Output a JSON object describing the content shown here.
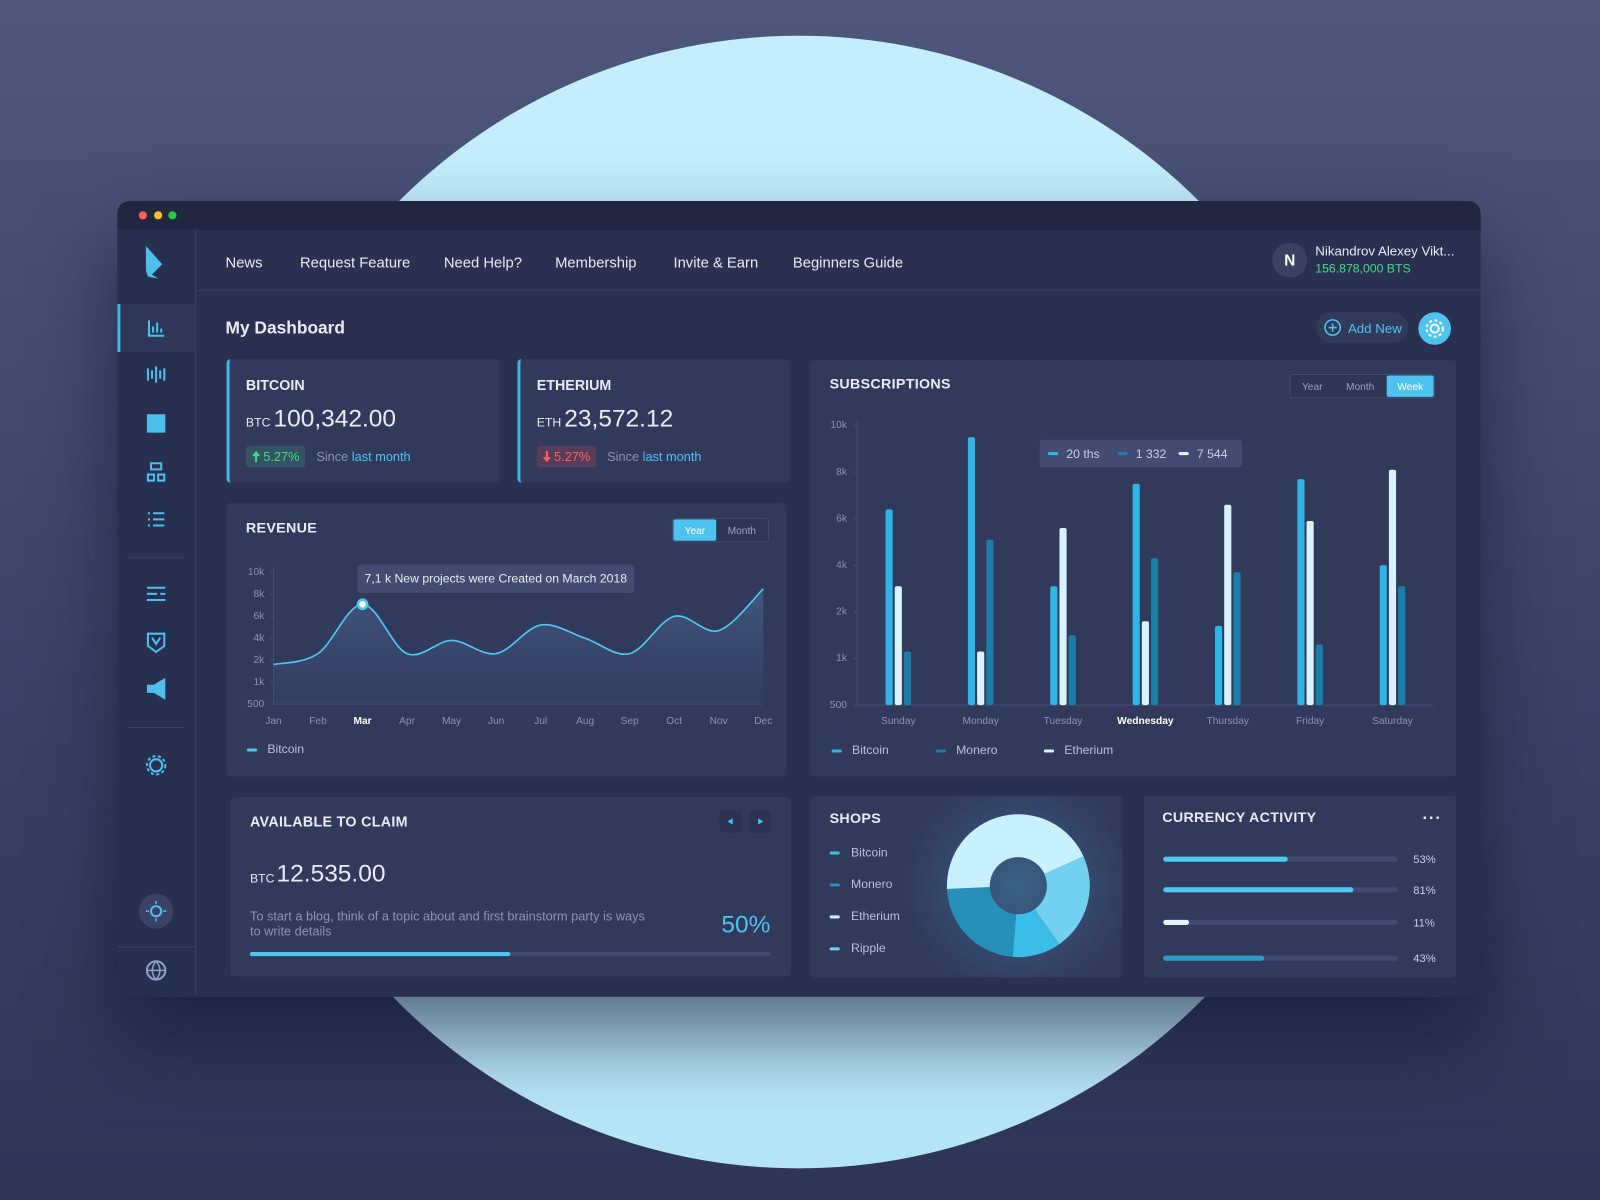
{
  "window": {
    "nav": [
      "News",
      "Request Feature",
      "Need Help?",
      "Membership",
      "Invite & Earn",
      "Beginners Guide"
    ],
    "user": {
      "initial": "N",
      "name": "Nikandrov Alexey Vikt...",
      "balance": "156.878,000 BTS"
    }
  },
  "page_title": "My Dashboard",
  "add_new": "Add New",
  "cards": [
    {
      "title": "BITCOIN",
      "currency": "BTC",
      "amount": "100,342.00",
      "change": "5.27%",
      "trend": "up",
      "since": "Since",
      "period": "last month"
    },
    {
      "title": "ETHERIUM",
      "currency": "ETH",
      "amount": "23,572.12",
      "change": "5.27%",
      "trend": "down",
      "since": "Since",
      "period": "last month"
    }
  ],
  "claim": {
    "title": "AVAILABLE TO CLAIM",
    "currency": "BTC",
    "amount": "12.535.00",
    "text": "To start a blog, think of a topic about and first brainstorm party is ways to write details",
    "progress": 50,
    "progress_label": "50%"
  },
  "chart_data": [
    {
      "type": "line",
      "title": "REVENUE",
      "tabs": [
        "Year",
        "Month"
      ],
      "active_tab": "Year",
      "categories": [
        "Jan",
        "Feb",
        "Mar",
        "Apr",
        "May",
        "Jun",
        "Jul",
        "Aug",
        "Sep",
        "Oct",
        "Nov",
        "Dec"
      ],
      "highlight": "Mar",
      "annotation": "7,1 k New projects were Created on March 2018",
      "series": [
        {
          "name": "Bitcoin",
          "color": "#4fc8f0",
          "values": [
            1800,
            2600,
            7100,
            2600,
            3800,
            2600,
            5200,
            4000,
            2600,
            6000,
            4700,
            8500
          ]
        }
      ],
      "ylim": [
        500,
        10000
      ],
      "yticks": [
        500,
        {
          "value": 1000,
          "label": "1k"
        },
        {
          "value": 2000,
          "label": "2k"
        },
        {
          "value": 4000,
          "label": "4k"
        },
        {
          "value": 6000,
          "label": "6k"
        },
        {
          "value": 8000,
          "label": "8k"
        },
        {
          "value": 10000,
          "label": "10k"
        }
      ]
    },
    {
      "type": "bar",
      "title": "SUBSCRIPTIONS",
      "tabs": [
        "Year",
        "Month",
        "Week"
      ],
      "active_tab": "Week",
      "categories": [
        "Sunday",
        "Monday",
        "Tuesday",
        "Wednesday",
        "Thursday",
        "Friday",
        "Saturday"
      ],
      "highlight": "Wednesday",
      "tooltip": [
        "20 ths",
        "1 332",
        "7 544"
      ],
      "series": [
        {
          "name": "Bitcoin",
          "color": "#2fb5e6",
          "values": [
            6400,
            9500,
            3100,
            7500,
            1700,
            7700,
            4000
          ]
        },
        {
          "name": "Monero",
          "color": "#1a7ea6",
          "values": [
            1150,
            5100,
            1500,
            4300,
            3700,
            1300,
            3100
          ]
        },
        {
          "name": "Etherium",
          "color": "#d8f3ff",
          "values": [
            3100,
            1150,
            5600,
            1800,
            6600,
            5900,
            8100
          ]
        }
      ],
      "ylim": [
        500,
        10000
      ],
      "yticks": [
        500,
        {
          "value": 1000,
          "label": "1k"
        },
        {
          "value": 2000,
          "label": "2k"
        },
        {
          "value": 4000,
          "label": "4k"
        },
        {
          "value": 6000,
          "label": "6k"
        },
        {
          "value": 8000,
          "label": "8k"
        },
        {
          "value": 10000,
          "label": "10k"
        }
      ]
    },
    {
      "type": "pie",
      "title": "SHOPS",
      "donut": true,
      "categories": [
        "Bitcoin",
        "Monero",
        "Etherium",
        "Ripple"
      ],
      "values": [
        11,
        23,
        44,
        22
      ],
      "colors": [
        "#3bbde8",
        "#2690b8",
        "#c8f1ff",
        "#72d1f0"
      ]
    },
    {
      "type": "bar",
      "orientation": "horizontal",
      "title": "CURRENCY ACTIVITY",
      "values": [
        53,
        81,
        11,
        43
      ],
      "value_labels": [
        "53%",
        "81%",
        "11%",
        "43%"
      ],
      "colors": [
        "#4fc8f0",
        "#4fc8f0",
        "#e3f6ff",
        "#2a9cc8"
      ],
      "xlim": [
        0,
        100
      ]
    }
  ]
}
